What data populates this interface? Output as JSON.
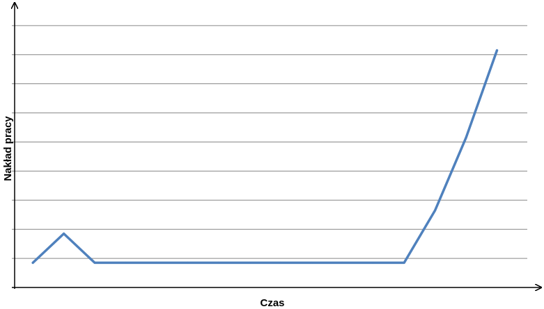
{
  "chart_data": {
    "type": "line",
    "xlabel": "Czas",
    "ylabel": "Nakład pracy",
    "x": [
      1,
      2,
      3,
      4,
      5,
      6,
      7,
      8,
      9,
      10,
      11,
      12,
      13,
      14,
      15,
      16
    ],
    "series": [
      {
        "values": [
          1,
          2,
          1,
          1,
          1,
          1,
          1,
          1,
          1,
          1,
          1,
          1,
          1,
          2.8,
          5.3,
          8.3
        ]
      }
    ],
    "xlim": [
      0.41,
      16.98
    ],
    "ylim": [
      0.15,
      9.6
    ],
    "y_gridlines": [
      0.15,
      1.15,
      2.15,
      3.15,
      4.15,
      5.15,
      6.15,
      7.15,
      8.15,
      9.15
    ],
    "grid": true,
    "legend": "none",
    "line_color": "#4f81bd",
    "grid_color": "#868686",
    "axis_color": "#000000"
  }
}
